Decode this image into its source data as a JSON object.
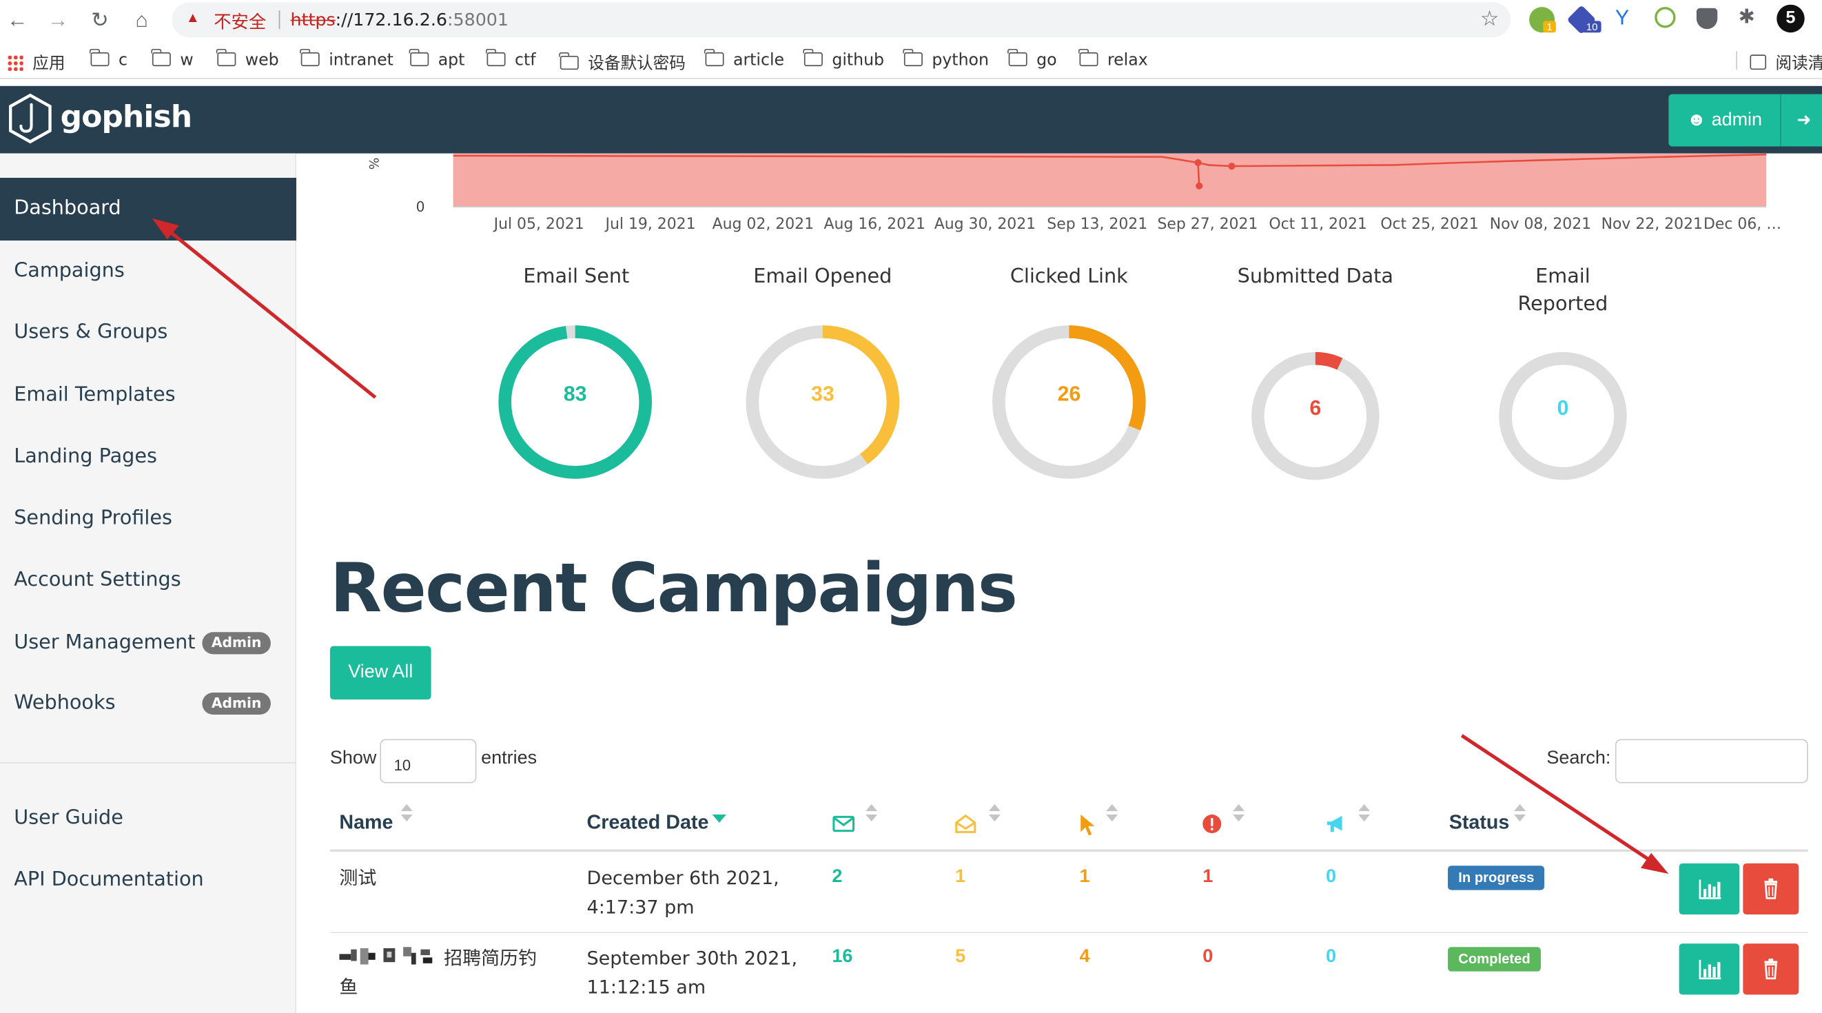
{
  "browser": {
    "insecure_label": "不安全",
    "url_scheme": "https",
    "url_host": "://172.16.2.6",
    "url_port": ":58001",
    "ext_badge_1": "1",
    "ext_badge_2": "10",
    "profile_initial": "5",
    "bookmarks": [
      "应用",
      "c",
      "w",
      "web",
      "intranet",
      "apt",
      "ctf",
      "设备默认密码",
      "article",
      "github",
      "python",
      "go",
      "relax"
    ],
    "reading_list": "阅读清"
  },
  "app": {
    "brand": "gophish",
    "user_label": "admin"
  },
  "sidebar": {
    "items": [
      {
        "label": "Dashboard",
        "active": true
      },
      {
        "label": "Campaigns"
      },
      {
        "label": "Users & Groups"
      },
      {
        "label": "Email Templates"
      },
      {
        "label": "Landing Pages"
      },
      {
        "label": "Sending Profiles"
      },
      {
        "label": "Account Settings"
      },
      {
        "label": "User Management",
        "badge": "Admin"
      },
      {
        "label": "Webhooks",
        "badge": "Admin"
      }
    ],
    "footer_items": [
      "User Guide",
      "API Documentation"
    ]
  },
  "timeline": {
    "y_zero": "0",
    "y_label": "% o",
    "dates": [
      "Jul 05, 2021",
      "Jul 19, 2021",
      "Aug 02, 2021",
      "Aug 16, 2021",
      "Aug 30, 2021",
      "Sep 13, 2021",
      "Sep 27, 2021",
      "Oct 11, 2021",
      "Oct 25, 2021",
      "Nov 08, 2021",
      "Nov 22, 2021",
      "Dec 06, …"
    ]
  },
  "stats": [
    {
      "label": "Email Sent",
      "value": 83,
      "fraction": 0.98,
      "color": "#1abc9c"
    },
    {
      "label": "Email Opened",
      "value": 33,
      "fraction": 0.4,
      "color": "#f9bf3b"
    },
    {
      "label": "Clicked Link",
      "value": 26,
      "fraction": 0.31,
      "color": "#f39c12"
    },
    {
      "label": "Submitted Data",
      "value": 6,
      "fraction": 0.07,
      "color": "#e74c3c"
    },
    {
      "label": "Email Reported",
      "value": 0,
      "fraction": 0.0,
      "color": "#45d6ef"
    }
  ],
  "recent": {
    "title": "Recent Campaigns",
    "view_all": "View All",
    "show_label": "Show",
    "entries_value": "10",
    "entries_label": "entries",
    "search_label": "Search:",
    "columns": {
      "name": "Name",
      "created": "Created Date",
      "status": "Status"
    },
    "rows": [
      {
        "name": "测试",
        "name_line2": "",
        "created_1": "December 6th 2021,",
        "created_2": "4:17:37 pm",
        "sent": "2",
        "opened": "1",
        "clicked": "1",
        "submitted": "1",
        "reported": "0",
        "status": "In progress",
        "status_color": "#337ab7"
      },
      {
        "name": "招聘简历钓",
        "name_line2": "鱼",
        "created_1": "September 30th 2021,",
        "created_2": "11:12:15 am",
        "sent": "16",
        "opened": "5",
        "clicked": "4",
        "submitted": "0",
        "reported": "0",
        "status": "Completed",
        "status_color": "#5cb85c"
      }
    ]
  },
  "colors": {
    "navbar": "#283f50",
    "accent": "#1abc9c",
    "danger": "#e74c3c",
    "opened": "#f9bf3b",
    "clicked": "#f39c12",
    "reported": "#45d6ef",
    "annotation_arrow": "#d0272a"
  }
}
